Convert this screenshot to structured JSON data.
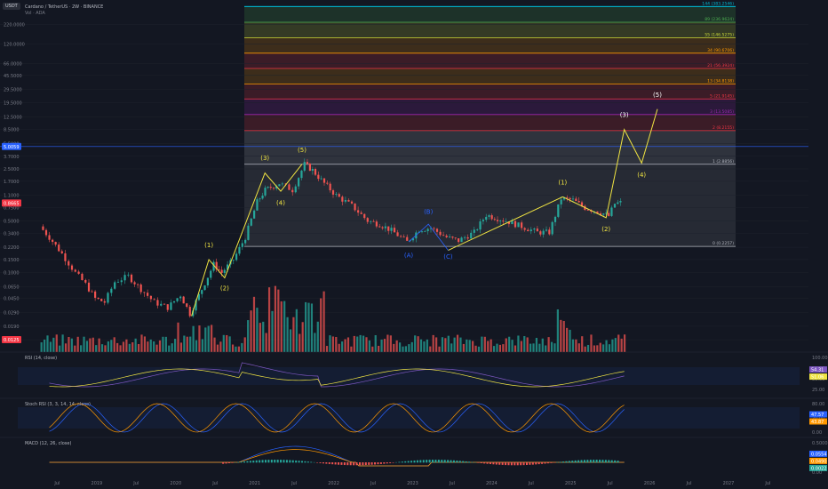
{
  "header": {
    "symbol_badge": "USDT",
    "title": "Cardano / TetherUS · 2W · BINANCE",
    "sub": "Vol · ADA"
  },
  "chart_data": {
    "type": "candlestick",
    "scale": "log",
    "price_ticks": [
      "220.0000",
      "120.0000",
      "66.0000",
      "45.5000",
      "29.5000",
      "19.5000",
      "12.5000",
      "8.5000",
      "5.5000",
      "3.7000",
      "2.5000",
      "1.7000",
      "1.1000",
      "0.7500",
      "0.5000",
      "0.3400",
      "0.2200",
      "0.1500",
      "0.1000",
      "0.0650",
      "0.0450",
      "0.0290",
      "0.0190",
      "0.0125"
    ],
    "price_tags": [
      {
        "text": "5.0059",
        "color": "#2962ff"
      },
      {
        "text": "0.8665",
        "color": "#f23645"
      },
      {
        "text": "0.0125",
        "color": "#f23645"
      }
    ],
    "time_ticks": [
      "Jul",
      "2019",
      "Jul",
      "2020",
      "Jul",
      "2021",
      "Jul",
      "2022",
      "Jul",
      "2023",
      "Jul",
      "2024",
      "Jul",
      "2025",
      "Jul",
      "2026",
      "Jul",
      "2027",
      "Jul"
    ],
    "price_path": [
      [
        2018.3,
        0.42
      ],
      [
        2018.42,
        0.3
      ],
      [
        2018.58,
        0.18
      ],
      [
        2018.75,
        0.1
      ],
      [
        2018.88,
        0.07
      ],
      [
        2019.0,
        0.045
      ],
      [
        2019.12,
        0.04
      ],
      [
        2019.25,
        0.075
      ],
      [
        2019.42,
        0.09
      ],
      [
        2019.58,
        0.06
      ],
      [
        2019.75,
        0.04
      ],
      [
        2019.92,
        0.034
      ],
      [
        2020.08,
        0.05
      ],
      [
        2020.2,
        0.028
      ],
      [
        2020.35,
        0.06
      ],
      [
        2020.5,
        0.13
      ],
      [
        2020.6,
        0.1
      ],
      [
        2020.75,
        0.15
      ],
      [
        2020.9,
        0.3
      ],
      [
        2021.05,
        0.9
      ],
      [
        2021.15,
        1.3
      ],
      [
        2021.33,
        1.6
      ],
      [
        2021.5,
        1.3
      ],
      [
        2021.65,
        2.9
      ],
      [
        2021.75,
        2.4
      ],
      [
        2021.9,
        1.6
      ],
      [
        2022.05,
        1.1
      ],
      [
        2022.25,
        0.8
      ],
      [
        2022.45,
        0.5
      ],
      [
        2022.6,
        0.45
      ],
      [
        2022.75,
        0.37
      ],
      [
        2022.95,
        0.26
      ],
      [
        2023.1,
        0.38
      ],
      [
        2023.25,
        0.4
      ],
      [
        2023.45,
        0.3
      ],
      [
        2023.6,
        0.27
      ],
      [
        2023.8,
        0.35
      ],
      [
        2023.95,
        0.6
      ],
      [
        2024.2,
        0.5
      ],
      [
        2024.4,
        0.42
      ],
      [
        2024.6,
        0.35
      ],
      [
        2024.75,
        0.35
      ],
      [
        2024.9,
        1.0
      ],
      [
        2025.05,
        0.95
      ],
      [
        2025.2,
        0.75
      ],
      [
        2025.4,
        0.65
      ],
      [
        2025.5,
        0.58
      ],
      [
        2025.58,
        0.85
      ],
      [
        2025.65,
        0.88
      ]
    ],
    "elliott_waves": [
      {
        "label": "(1)",
        "color": "#f0e442"
      },
      {
        "label": "(2)",
        "color": "#f0e442"
      },
      {
        "label": "(3)",
        "color": "#f0e442"
      },
      {
        "label": "(4)",
        "color": "#f0e442"
      },
      {
        "label": "(5)",
        "color": "#f0e442"
      },
      {
        "label": "(A)",
        "color": "#2962ff"
      },
      {
        "label": "(B)",
        "color": "#2962ff"
      },
      {
        "label": "(C)",
        "color": "#2962ff"
      },
      {
        "label": "(1)",
        "color": "#f0e442"
      },
      {
        "label": "(2)",
        "color": "#f0e442"
      },
      {
        "label": "(3)",
        "color": "#ffffff"
      },
      {
        "label": "(4)",
        "color": "#f0e442"
      },
      {
        "label": "(5)",
        "color": "#ffffff"
      }
    ],
    "fib_levels": [
      {
        "label": "0 (0.2257)",
        "color": "#b2b5be"
      },
      {
        "label": "1 (2.8856)",
        "color": "#b2b5be"
      },
      {
        "label": "2 (8.2155)",
        "color": "#f23645"
      },
      {
        "label": "3 (13.5085)",
        "color": "#9c27b0"
      },
      {
        "label": "5 (21.9145)",
        "color": "#f23645"
      },
      {
        "label": "13 (34.8138)",
        "color": "#ff9800"
      },
      {
        "label": "21 (56.3924)",
        "color": "#f23645"
      },
      {
        "label": "34 (90.6706)",
        "color": "#ff9800"
      },
      {
        "label": "55 (146.5275)",
        "color": "#cddc39"
      },
      {
        "label": "89 (236.9624)",
        "color": "#4caf50"
      },
      {
        "label": "144 (383.2546)",
        "color": "#00bcd4"
      }
    ],
    "volume_note": "volume bars green/red",
    "rsi": {
      "title": "RSI (14, close)",
      "ticks": [
        "100.00",
        "75.00",
        "50.00",
        "25.00"
      ],
      "tags": [
        "54.31",
        "51.06"
      ]
    },
    "stoch": {
      "title": "Stoch RSI (3, 3, 14, 14, close)",
      "ticks": [
        "80.00",
        "20.00",
        "0.00"
      ],
      "tags": [
        "47.57",
        "43.87"
      ]
    },
    "macd": {
      "title": "MACD (12, 26, close)",
      "ticks": [
        "0.5000",
        "0.00"
      ],
      "tags": [
        "0.0554",
        "0.0490",
        "0.0022"
      ]
    }
  }
}
